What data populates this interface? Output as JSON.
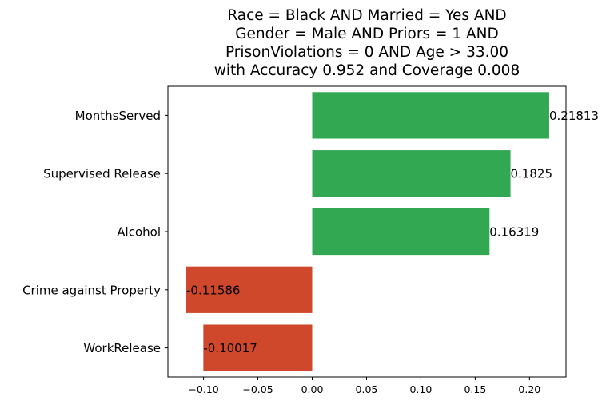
{
  "chart_data": {
    "type": "bar",
    "orientation": "horizontal",
    "title_lines": [
      "Race = Black AND Married = Yes AND",
      "Gender = Male AND Priors = 1 AND",
      "PrisonViolations = 0 AND Age > 33.00",
      "with Accuracy 0.952 and Coverage 0.008"
    ],
    "categories": [
      "MonthsServed",
      "Supervised Release",
      "Alcohol",
      "Crime against Property",
      "WorkRelease"
    ],
    "values": [
      0.21813,
      0.1825,
      0.16319,
      -0.11586,
      -0.10017
    ],
    "data_labels": [
      "0.21813",
      "0.1825",
      "0.16319",
      "-0.11586",
      "-0.10017"
    ],
    "xticks": [
      -0.1,
      -0.05,
      0.0,
      0.05,
      0.1,
      0.15,
      0.2
    ],
    "xtick_labels": [
      "−0.10",
      "−0.05",
      "0.00",
      "0.05",
      "0.10",
      "0.15",
      "0.20"
    ],
    "xlim": [
      -0.1328,
      0.2336
    ],
    "grid": false,
    "colors": {
      "positive": "#33a852",
      "negative": "#d0482b"
    }
  }
}
